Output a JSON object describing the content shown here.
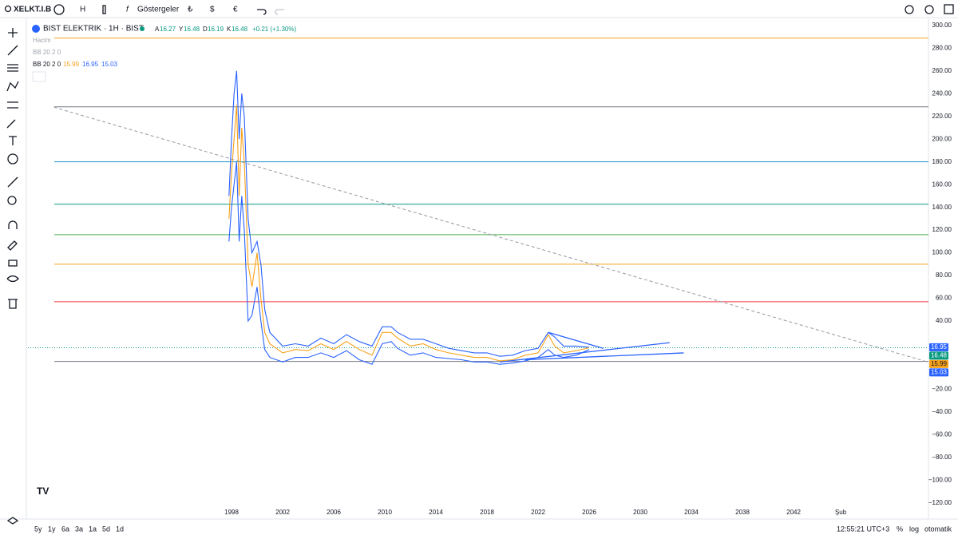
{
  "toolbar": {
    "symbol": "XELKT.I.B",
    "interval": "H",
    "indicators": "Göstergeler",
    "currencies": [
      "₺",
      "$",
      "€"
    ]
  },
  "legend": {
    "title": "BIST ELEKTRIK · 1H · BIST",
    "ohlc": [
      {
        "key": "A",
        "value": 16.27
      },
      {
        "key": "Y",
        "value": 16.48
      },
      {
        "key": "D",
        "value": 16.19
      },
      {
        "key": "K",
        "value": 16.48
      }
    ],
    "change": "+0.21 (+1.30%)",
    "volume": "Hacim",
    "bb_hidden": "BB 20 2 0",
    "bb": "BB 20 2 0",
    "bb_values": [
      {
        "value": 15.99,
        "color": "#f7a21b"
      },
      {
        "value": 16.95,
        "color": "#2962ff"
      },
      {
        "value": 15.03,
        "color": "#2962ff"
      }
    ]
  },
  "chart_data": {
    "type": "line",
    "xlim": [
      1982.06,
      2052.56
    ],
    "xticks": [
      1998,
      2002,
      2006,
      2010,
      2014,
      2018,
      2022,
      2026,
      2030,
      2034,
      2038,
      2042,
      {
        "value": 2045.69,
        "label": "Şub"
      }
    ],
    "ylim": [
      -120,
      300
    ],
    "yticks": [
      {
        "value": 300,
        "label": "300.00"
      },
      {
        "value": 280,
        "label": "280.00"
      },
      {
        "value": 260,
        "label": "260.00"
      },
      {
        "value": 240,
        "label": "240.00"
      },
      {
        "value": 220,
        "label": "220.00"
      },
      {
        "value": 200,
        "label": "200.00"
      },
      {
        "value": 180,
        "label": "180.00"
      },
      {
        "value": 160,
        "label": "160.00"
      },
      {
        "value": 140,
        "label": "140.00"
      },
      {
        "value": 120,
        "label": "120.00"
      },
      {
        "value": 100,
        "label": "100.00"
      },
      {
        "value": 80,
        "label": "80.00"
      },
      {
        "value": 60,
        "label": "60.00"
      },
      {
        "value": 40,
        "label": "40.00"
      },
      {
        "value": -20,
        "label": "−20.00"
      },
      {
        "value": -40,
        "label": "−40.00"
      },
      {
        "value": -60,
        "label": "−60.00"
      },
      {
        "value": -80,
        "label": "−80.00"
      },
      {
        "value": -100,
        "label": "−100.00"
      },
      {
        "value": -120,
        "label": "−120.00"
      }
    ],
    "x": [
      1997.8,
      1998.0,
      1998.2,
      1998.4,
      1998.6,
      1998.8,
      1999.0,
      1999.3,
      1999.6,
      2000.0,
      2000.3,
      2000.6,
      2001,
      2002,
      2003,
      2004,
      2005,
      2006,
      2007,
      2008,
      2009,
      2009.8,
      2010.5,
      2011,
      2012,
      2013,
      2014,
      2015,
      2016,
      2017,
      2018,
      2019,
      2020,
      2021,
      2022,
      2022.8,
      2023.3,
      2024,
      2025,
      2026
    ],
    "series": [
      {
        "color": "#2962ff",
        "values": [
          150,
          200,
          240,
          260,
          200,
          240,
          220,
          130,
          100,
          110,
          90,
          50,
          30,
          18,
          20,
          18,
          25,
          20,
          28,
          22,
          18,
          35,
          35,
          30,
          24,
          24,
          20,
          16,
          14,
          12,
          12,
          9,
          10,
          14,
          16,
          30,
          26,
          18,
          18,
          17
        ]
      },
      {
        "color": "#f7a21b",
        "values": [
          130,
          170,
          200,
          230,
          150,
          210,
          180,
          90,
          70,
          100,
          60,
          30,
          20,
          12,
          15,
          14,
          20,
          15,
          22,
          15,
          10,
          30,
          30,
          25,
          18,
          20,
          15,
          12,
          10,
          8,
          8,
          5,
          6,
          10,
          12,
          28,
          18,
          12,
          14,
          16.48
        ]
      },
      {
        "color": "#2962ff",
        "values": [
          110,
          140,
          160,
          180,
          110,
          150,
          120,
          40,
          45,
          70,
          40,
          15,
          8,
          4,
          8,
          8,
          12,
          8,
          14,
          6,
          2,
          20,
          22,
          16,
          10,
          12,
          8,
          7,
          6,
          4,
          4,
          2,
          3,
          5,
          8,
          15,
          10,
          8,
          10,
          15
        ]
      }
    ],
    "levels": [
      {
        "value": 288.8,
        "color": "#f7a21b"
      },
      {
        "value": 228.4,
        "color": "#787b86"
      },
      {
        "value": 180,
        "color": "#2196c9"
      },
      {
        "value": 142.7,
        "color": "#089981"
      },
      {
        "value": 116,
        "color": "#4caf50"
      },
      {
        "value": 90,
        "color": "#f7a21b"
      },
      {
        "value": 57,
        "color": "#f23645"
      },
      {
        "value": 4.5,
        "color": "#787b86"
      }
    ],
    "trendlines": [
      {
        "x1": 1984.1,
        "y1": 228,
        "x2": 2052.5,
        "y2": 4,
        "color": "#9598a1",
        "dashed": true
      },
      {
        "x1": 2022.8,
        "y1": 30,
        "x2": 2027.1,
        "y2": 16,
        "color": "#2962ff",
        "dashed": false
      },
      {
        "x1": 2019.0,
        "y1": 4,
        "x2": 2032.3,
        "y2": 21,
        "color": "#2962ff",
        "dashed": false
      },
      {
        "x1": 2021.0,
        "y1": 6,
        "x2": 2033.4,
        "y2": 12,
        "color": "#2962ff",
        "dashed": false
      }
    ],
    "last_price": 16.48,
    "price_tags": [
      {
        "value": 16.95,
        "color": "#2962ff"
      },
      {
        "value": 16.48,
        "color": "#089981"
      },
      {
        "value": 15.99,
        "color": "#f7a21b"
      },
      {
        "value": 15.03,
        "color": "#2962ff"
      }
    ]
  },
  "bottom": {
    "ranges": [
      "5y",
      "1y",
      "6a",
      "3a",
      "1a",
      "5d",
      "1d"
    ],
    "clock": "12:55:21 UTC+3",
    "percent": "%",
    "log": "log",
    "auto": "otomatik"
  }
}
